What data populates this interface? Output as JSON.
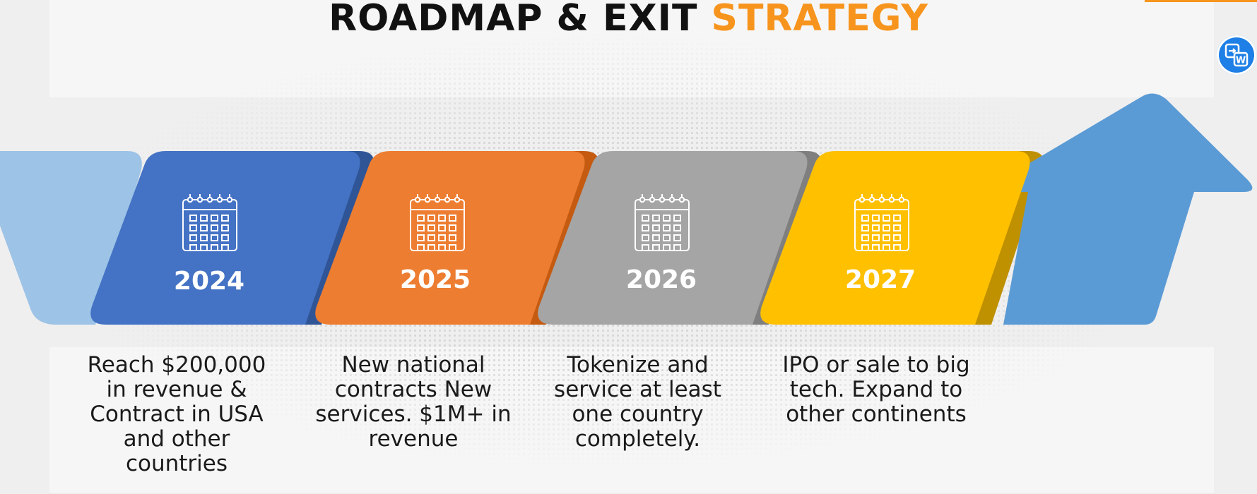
{
  "title": {
    "main": "ROADMAP & EXIT ",
    "highlight": "STRATEGY"
  },
  "colors": {
    "accent": "#f7941d",
    "blue_light": "#9dc3e6",
    "blue": "#4472c4",
    "blue_dark": "#2f5597",
    "orange": "#ed7d31",
    "orange_dark": "#c55a11",
    "gray": "#a5a5a5",
    "gray_dark": "#7f7f7f",
    "yellow": "#ffc000",
    "yellow_dark": "#bf9000",
    "arrow": "#5b9bd5"
  },
  "steps": [
    {
      "year": "2024",
      "icon": "calendar-icon",
      "text": "Reach $200,000 in revenue & Contract in USA and other countries"
    },
    {
      "year": "2025",
      "icon": "calendar-icon",
      "text": "New national contracts New services. $1M+ in revenue"
    },
    {
      "year": "2026",
      "icon": "calendar-icon",
      "text": "Tokenize and service at least one country completely."
    },
    {
      "year": "2027",
      "icon": "calendar-icon",
      "text": "IPO or sale to big tech. Expand to other continents"
    }
  ],
  "badge_icon": "translate-icon"
}
